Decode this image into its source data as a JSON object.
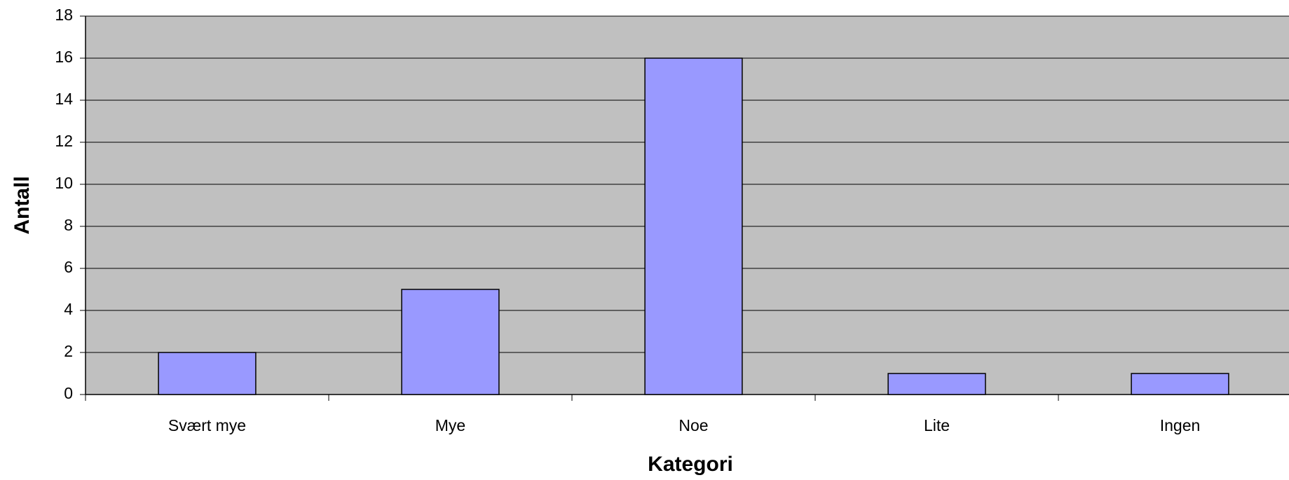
{
  "chart_data": {
    "type": "bar",
    "x_label": "Kategori",
    "y_label": "Antall",
    "categories": [
      "Svært mye",
      "Mye",
      "Noe",
      "Lite",
      "Ingen"
    ],
    "values": [
      2,
      5,
      16,
      1,
      1
    ],
    "color": "#9999ff",
    "ylim": [
      0,
      18
    ],
    "yticks": [
      0,
      2,
      4,
      6,
      8,
      10,
      12,
      14,
      16,
      18
    ],
    "grid": true
  }
}
